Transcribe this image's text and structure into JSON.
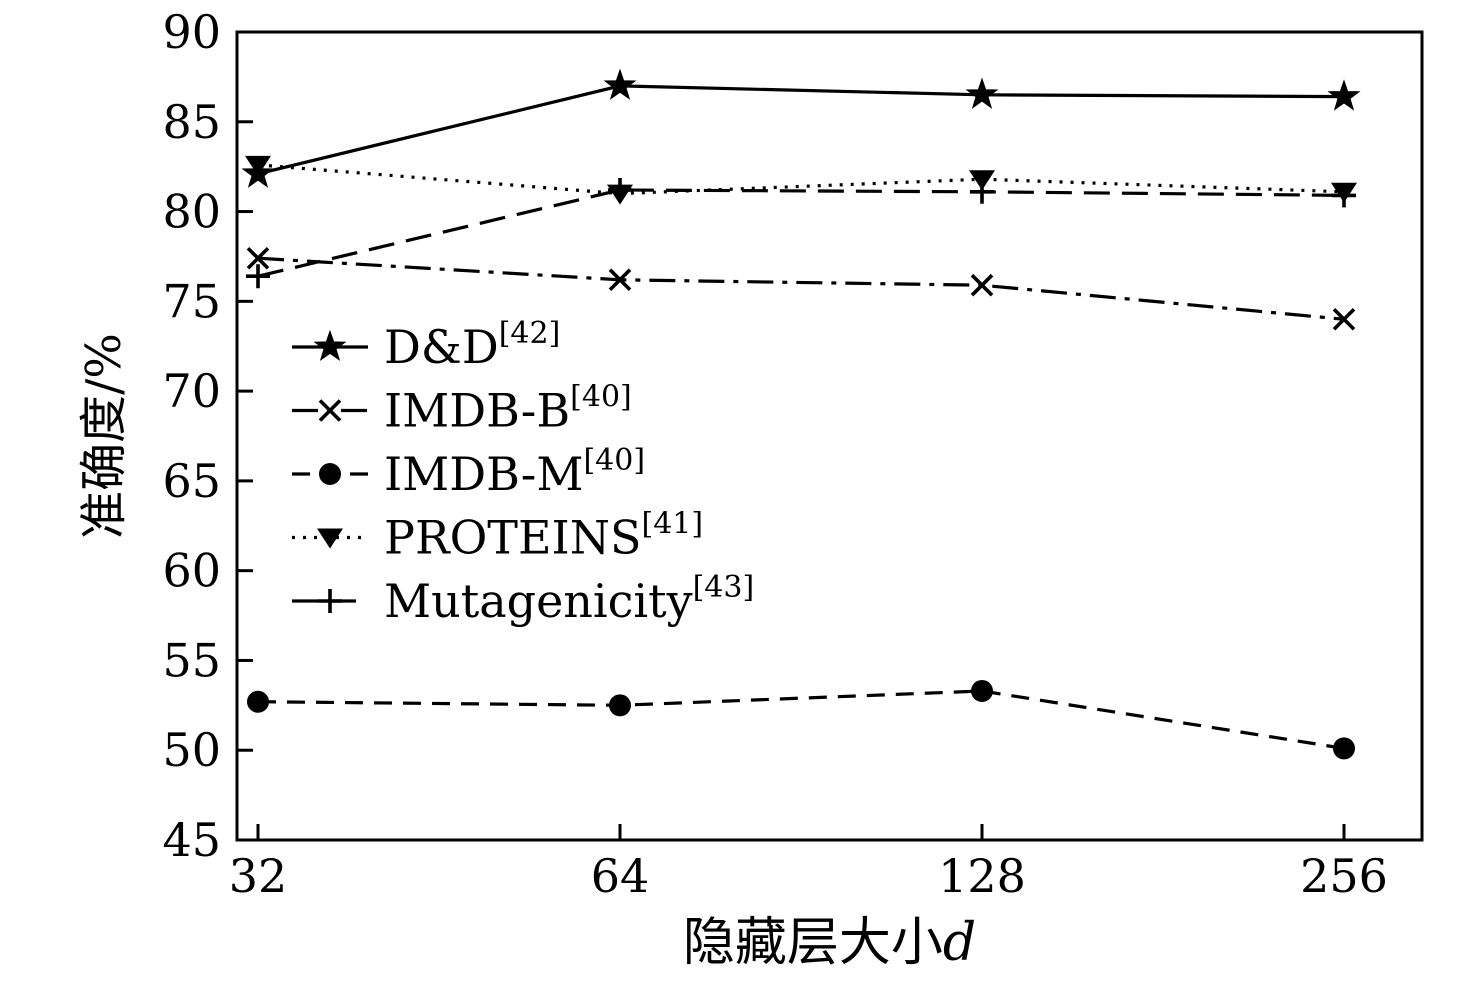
{
  "figure": {
    "background": "#ffffff",
    "ink_color": "#000000"
  },
  "chart_data": {
    "type": "line",
    "title": "",
    "xlabel": {
      "text": "隐藏层大小",
      "var": "d"
    },
    "ylabel": "准确度/%",
    "x_categories": [
      "32",
      "64",
      "128",
      "256"
    ],
    "yticks": [
      45,
      50,
      55,
      60,
      65,
      70,
      75,
      80,
      85,
      90
    ],
    "ylim": [
      45,
      90
    ],
    "grid": false,
    "legend_position": "inside-left-middle",
    "color": "#000000",
    "series": [
      {
        "name": "D&D",
        "ref_sup": "[42]",
        "values": [
          82.1,
          87.0,
          86.5,
          86.4
        ],
        "line_style": "solid",
        "marker": "star"
      },
      {
        "name": "IMDB-B",
        "ref_sup": "[40]",
        "values": [
          77.4,
          76.2,
          75.9,
          74.0
        ],
        "line_style": "dashdot",
        "marker": "x"
      },
      {
        "name": "IMDB-M",
        "ref_sup": "[40]",
        "values": [
          52.7,
          52.5,
          53.3,
          50.1
        ],
        "line_style": "dashed",
        "marker": "circle"
      },
      {
        "name": "PROTEINS",
        "ref_sup": "[41]",
        "values": [
          82.6,
          81.0,
          81.8,
          81.1
        ],
        "line_style": "dotted",
        "marker": "triangle-down"
      },
      {
        "name": "Mutagenicity",
        "ref_sup": "[43]",
        "values": [
          76.4,
          81.2,
          81.1,
          80.9
        ],
        "line_style": "long-dash",
        "marker": "plus"
      }
    ]
  }
}
